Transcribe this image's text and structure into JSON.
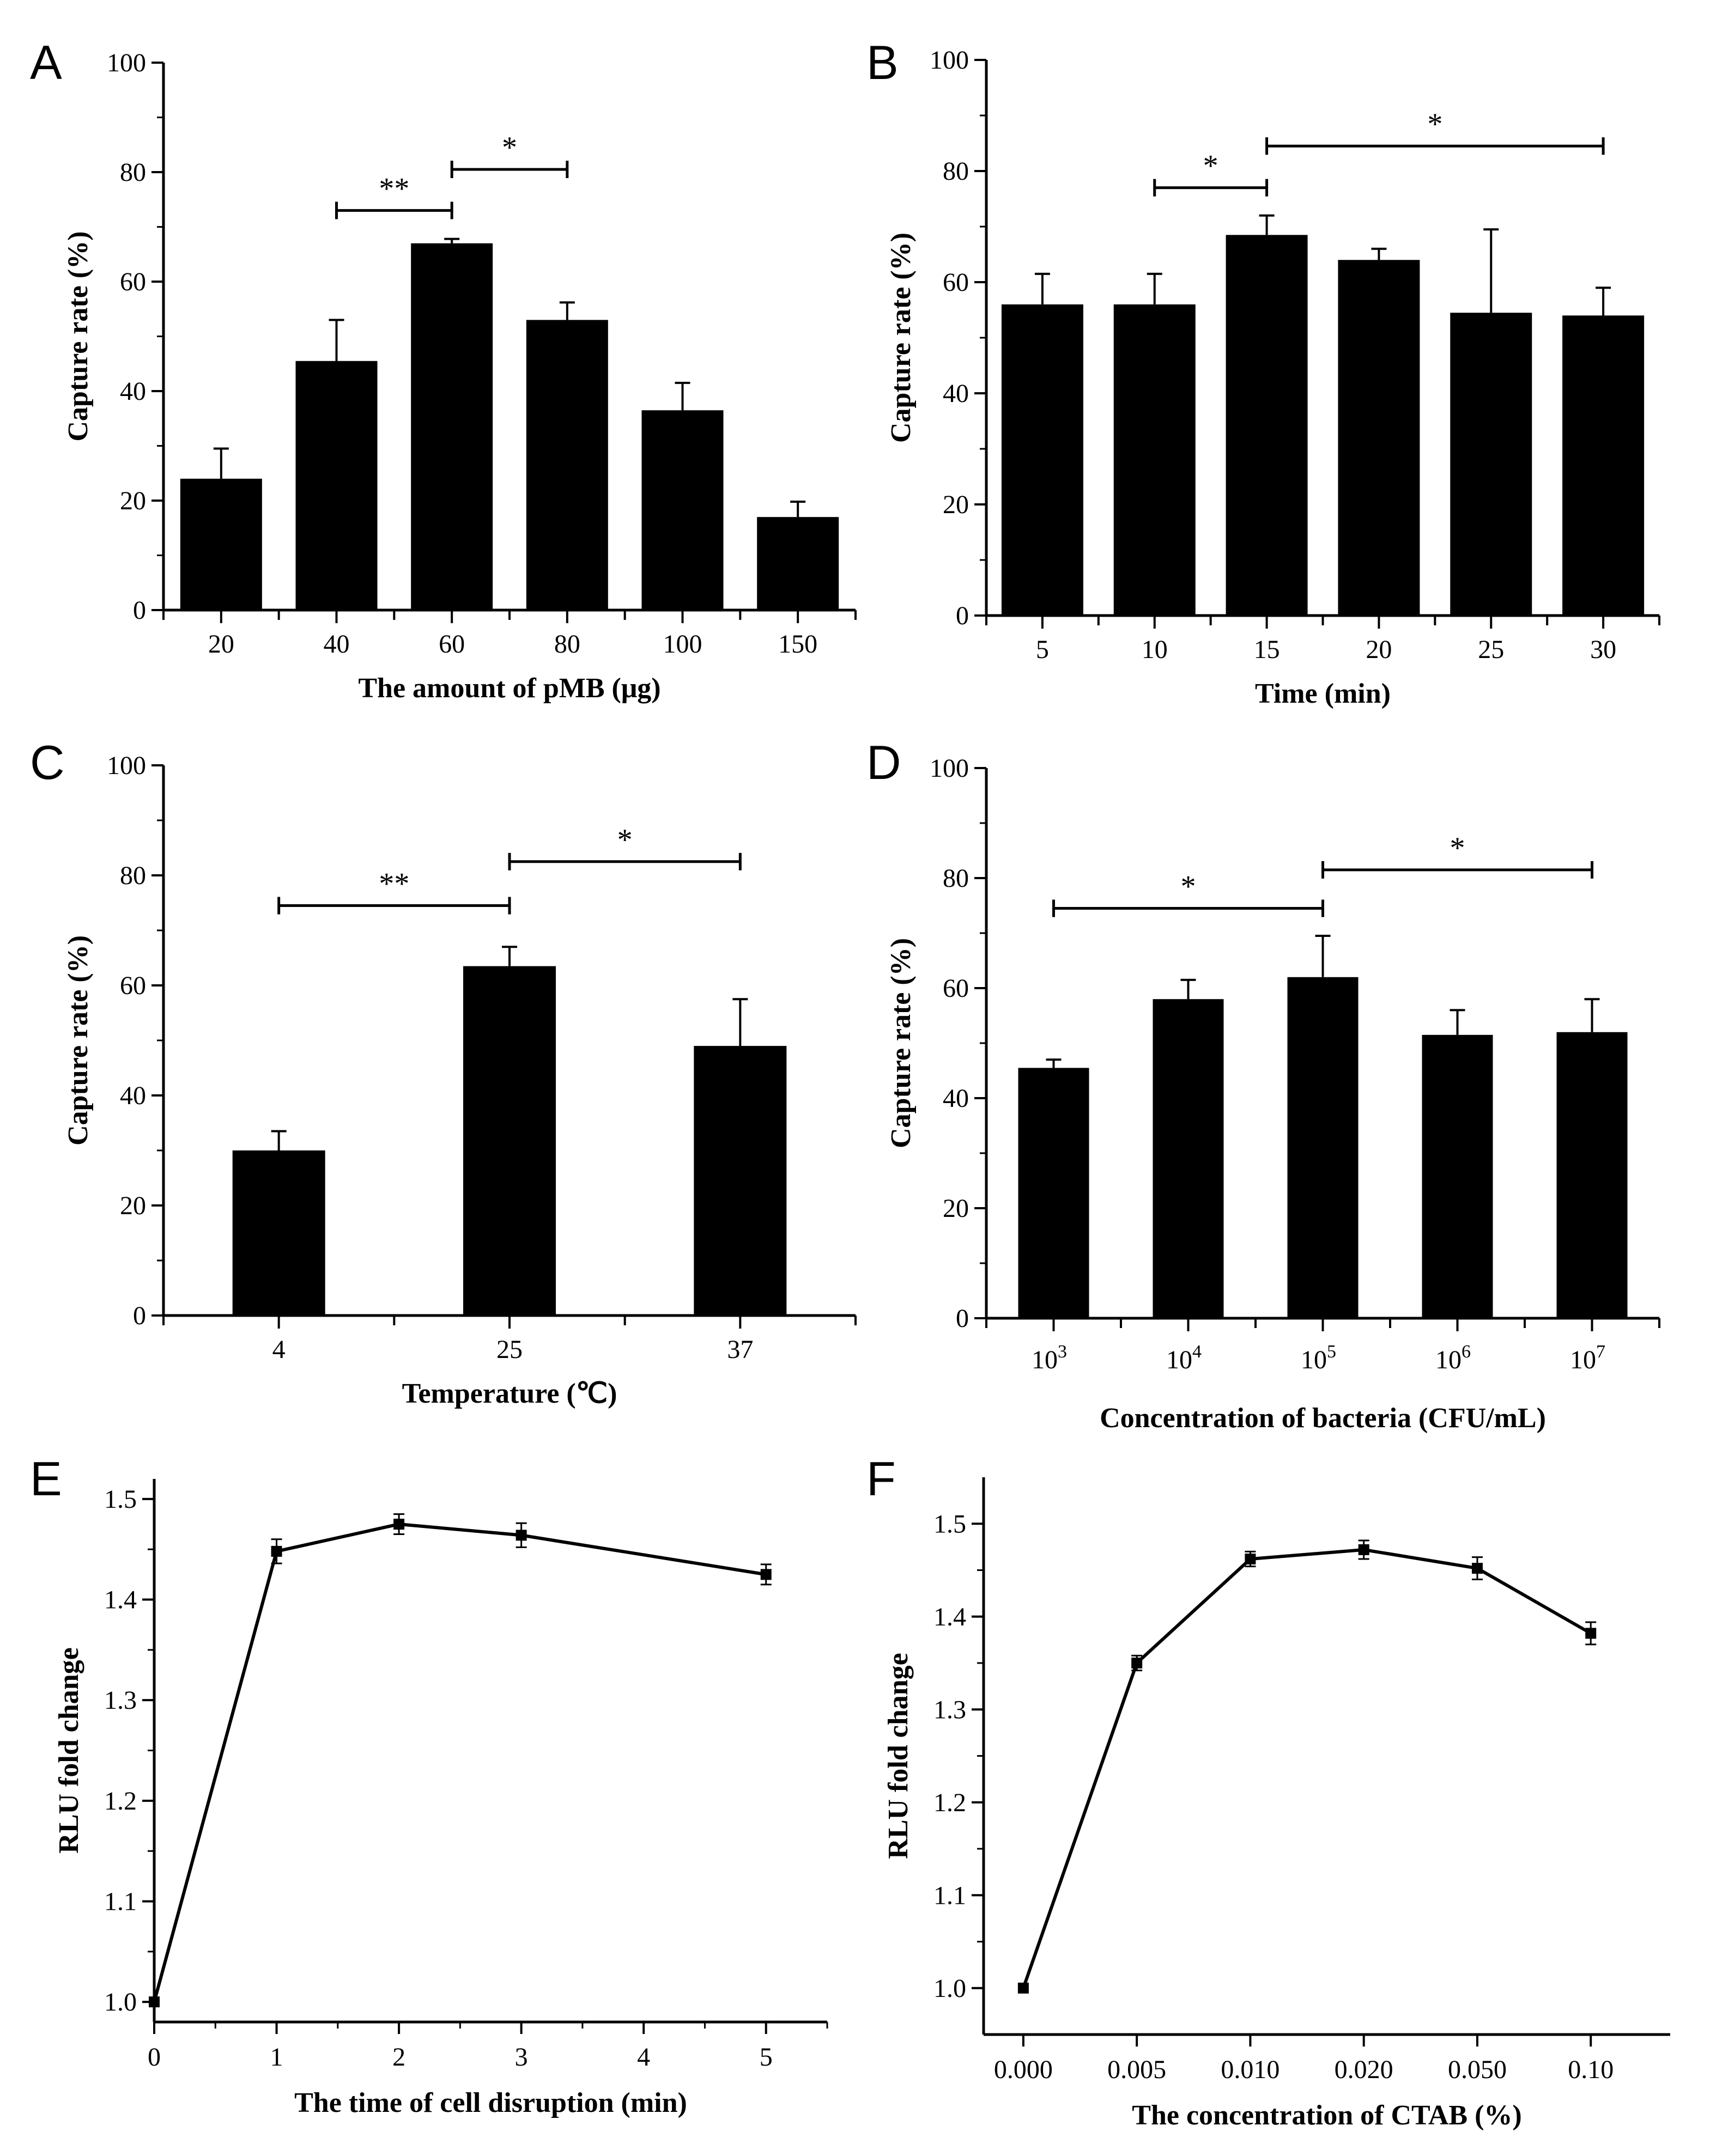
{
  "chart_data": [
    {
      "panel": "A",
      "type": "bar",
      "categories": [
        "20",
        "40",
        "60",
        "80",
        "100",
        "150"
      ],
      "values": [
        24,
        45.5,
        67,
        53,
        36.5,
        17
      ],
      "errors": [
        5.5,
        7.5,
        0.8,
        3.2,
        5,
        2.8
      ],
      "xlabel": "The amount of pMB (μg)",
      "ylabel": "Capture rate (%)",
      "ylim": [
        0,
        100
      ],
      "yticks": [
        "0",
        "20",
        "40",
        "60",
        "80",
        "100"
      ],
      "significance": [
        {
          "from": 1,
          "to": 2,
          "label": "**",
          "y": 73
        },
        {
          "from": 2,
          "to": 3,
          "label": "*",
          "y": 80.5
        }
      ]
    },
    {
      "panel": "B",
      "type": "bar",
      "categories": [
        "5",
        "10",
        "15",
        "20",
        "25",
        "30"
      ],
      "values": [
        56,
        56,
        68.5,
        64,
        54.5,
        54
      ],
      "errors": [
        5.5,
        5.5,
        3.5,
        2,
        15,
        5
      ],
      "xlabel": "Time (min)",
      "ylabel": "Capture rate (%)",
      "ylim": [
        0,
        100
      ],
      "yticks": [
        "0",
        "20",
        "40",
        "60",
        "80",
        "100"
      ],
      "significance": [
        {
          "from": 1,
          "to": 2,
          "label": "*",
          "y": 77
        },
        {
          "from": 2,
          "to": 5,
          "label": "*",
          "y": 84.5
        }
      ]
    },
    {
      "panel": "C",
      "type": "bar",
      "categories": [
        "4",
        "25",
        "37"
      ],
      "values": [
        30,
        63.5,
        49
      ],
      "errors": [
        3.5,
        3.5,
        8.5
      ],
      "xlabel": "Temperature (℃)",
      "ylabel": "Capture rate (%)",
      "ylim": [
        0,
        100
      ],
      "yticks": [
        "0",
        "20",
        "40",
        "60",
        "80",
        "100"
      ],
      "significance": [
        {
          "from": 0,
          "to": 1,
          "label": "**",
          "y": 74.5
        },
        {
          "from": 1,
          "to": 2,
          "label": "*",
          "y": 82.5
        }
      ]
    },
    {
      "panel": "D",
      "type": "bar",
      "categories": [
        "10^3",
        "10^4",
        "10^5",
        "10^6",
        "10^7"
      ],
      "category_base": "10",
      "category_exponents": [
        "3",
        "4",
        "5",
        "6",
        "7"
      ],
      "values": [
        45.5,
        58,
        62,
        51.5,
        52
      ],
      "errors": [
        1.5,
        3.5,
        7.5,
        4.5,
        6
      ],
      "xlabel": "Concentration of bacteria (CFU/mL)",
      "ylabel": "Capture rate (%)",
      "ylim": [
        0,
        100
      ],
      "yticks": [
        "0",
        "20",
        "40",
        "60",
        "80",
        "100"
      ],
      "significance": [
        {
          "from": 0,
          "to": 2,
          "label": "*",
          "y": 74.5
        },
        {
          "from": 2,
          "to": 4,
          "label": "*",
          "y": 81.5
        }
      ]
    },
    {
      "panel": "E",
      "type": "line",
      "x": [
        0,
        1,
        2,
        3,
        5
      ],
      "y": [
        1.0,
        1.448,
        1.475,
        1.464,
        1.425
      ],
      "errors": [
        0,
        0.012,
        0.01,
        0.012,
        0.01
      ],
      "xlabel": "The time of cell disruption (min)",
      "ylabel": "RLU fold change",
      "xlim": [
        0,
        5.5
      ],
      "ylim": [
        0.98,
        1.52
      ],
      "xticks": [
        "0",
        "1",
        "2",
        "3",
        "4",
        "5"
      ],
      "yticks": [
        "1.0",
        "1.1",
        "1.2",
        "1.3",
        "1.4",
        "1.5"
      ]
    },
    {
      "panel": "F",
      "type": "line",
      "categories": [
        "0.000",
        "0.005",
        "0.010",
        "0.020",
        "0.050",
        "0.10"
      ],
      "y": [
        1.0,
        1.35,
        1.462,
        1.472,
        1.452,
        1.382
      ],
      "errors": [
        0,
        0.008,
        0.008,
        0.01,
        0.012,
        0.012
      ],
      "xlabel": "The concentration of CTAB (%)",
      "ylabel": "RLU fold change",
      "ylim": [
        0.95,
        1.55
      ],
      "yticks": [
        "1.0",
        "1.1",
        "1.2",
        "1.3",
        "1.4",
        "1.5"
      ]
    }
  ]
}
